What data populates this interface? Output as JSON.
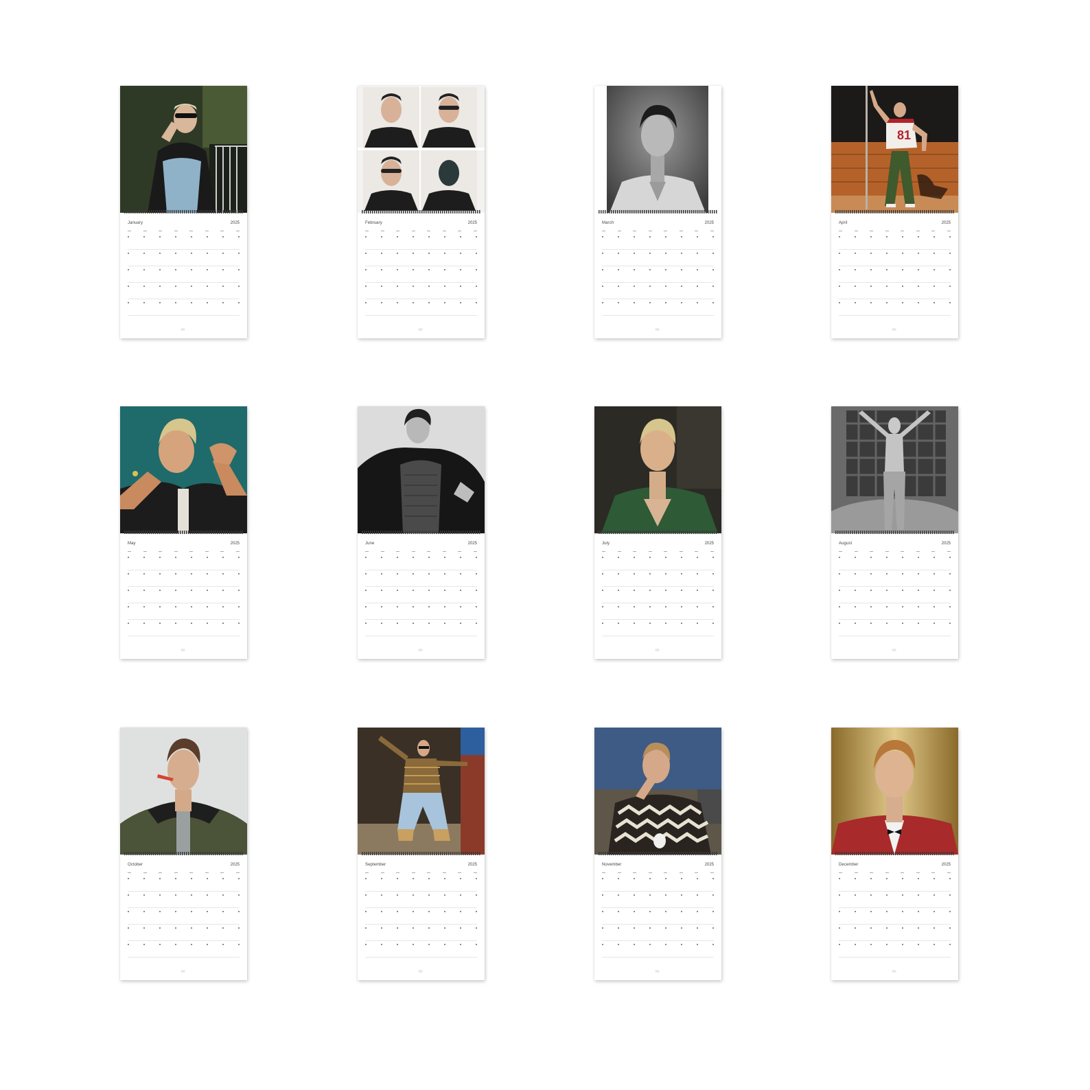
{
  "calendars": [
    {
      "month": "January",
      "year": "2025",
      "photo": "man-in-sunglasses-green-tones-photo",
      "accent": "#2f3a26"
    },
    {
      "month": "February",
      "year": "2025",
      "photo": "photobooth-strip-four-frames-photo",
      "accent": "#e9e5e2"
    },
    {
      "month": "March",
      "year": "2025",
      "photo": "black-and-white-portrait-photo",
      "accent": "#6b6b6b"
    },
    {
      "month": "April",
      "year": "2025",
      "photo": "man-in-jersey-81-orange-wall-photo",
      "accent": "#b5622a"
    },
    {
      "month": "May",
      "year": "2025",
      "photo": "man-reaching-teal-background-photo",
      "accent": "#1f6a6a"
    },
    {
      "month": "June",
      "year": "2025",
      "photo": "man-in-leather-jacket-bw-photo",
      "accent": "#cfcfcf"
    },
    {
      "month": "July",
      "year": "2025",
      "photo": "man-in-green-shirt-dark-photo",
      "accent": "#2b2a25"
    },
    {
      "month": "August",
      "year": "2025",
      "photo": "man-holding-blanket-bw-photo",
      "accent": "#555555"
    },
    {
      "month": "October",
      "year": "2025",
      "photo": "man-in-green-jacket-grey-photo",
      "accent": "#d9dcdc"
    },
    {
      "month": "September",
      "year": "2025",
      "photo": "man-dancing-patterned-sweater-photo",
      "accent": "#5a4a33"
    },
    {
      "month": "November",
      "year": "2025",
      "photo": "man-in-zigzag-cardigan-blue-sky-photo",
      "accent": "#3d5b84"
    },
    {
      "month": "December",
      "year": "2025",
      "photo": "man-in-red-jacket-bowtie-gold-photo",
      "accent": "#b48a3c"
    }
  ]
}
